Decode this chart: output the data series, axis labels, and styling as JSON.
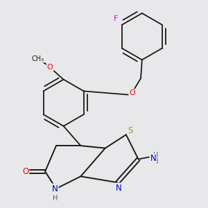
{
  "bg_color": "#e8e8eb",
  "bond_color": "#1a1a1a",
  "atom_colors": {
    "O": "#ff0000",
    "N": "#0000cc",
    "S": "#999900",
    "F": "#ee00ee",
    "H": "#336666",
    "C": "#1a1a1a"
  },
  "figsize": [
    3.0,
    3.0
  ],
  "dpi": 100
}
